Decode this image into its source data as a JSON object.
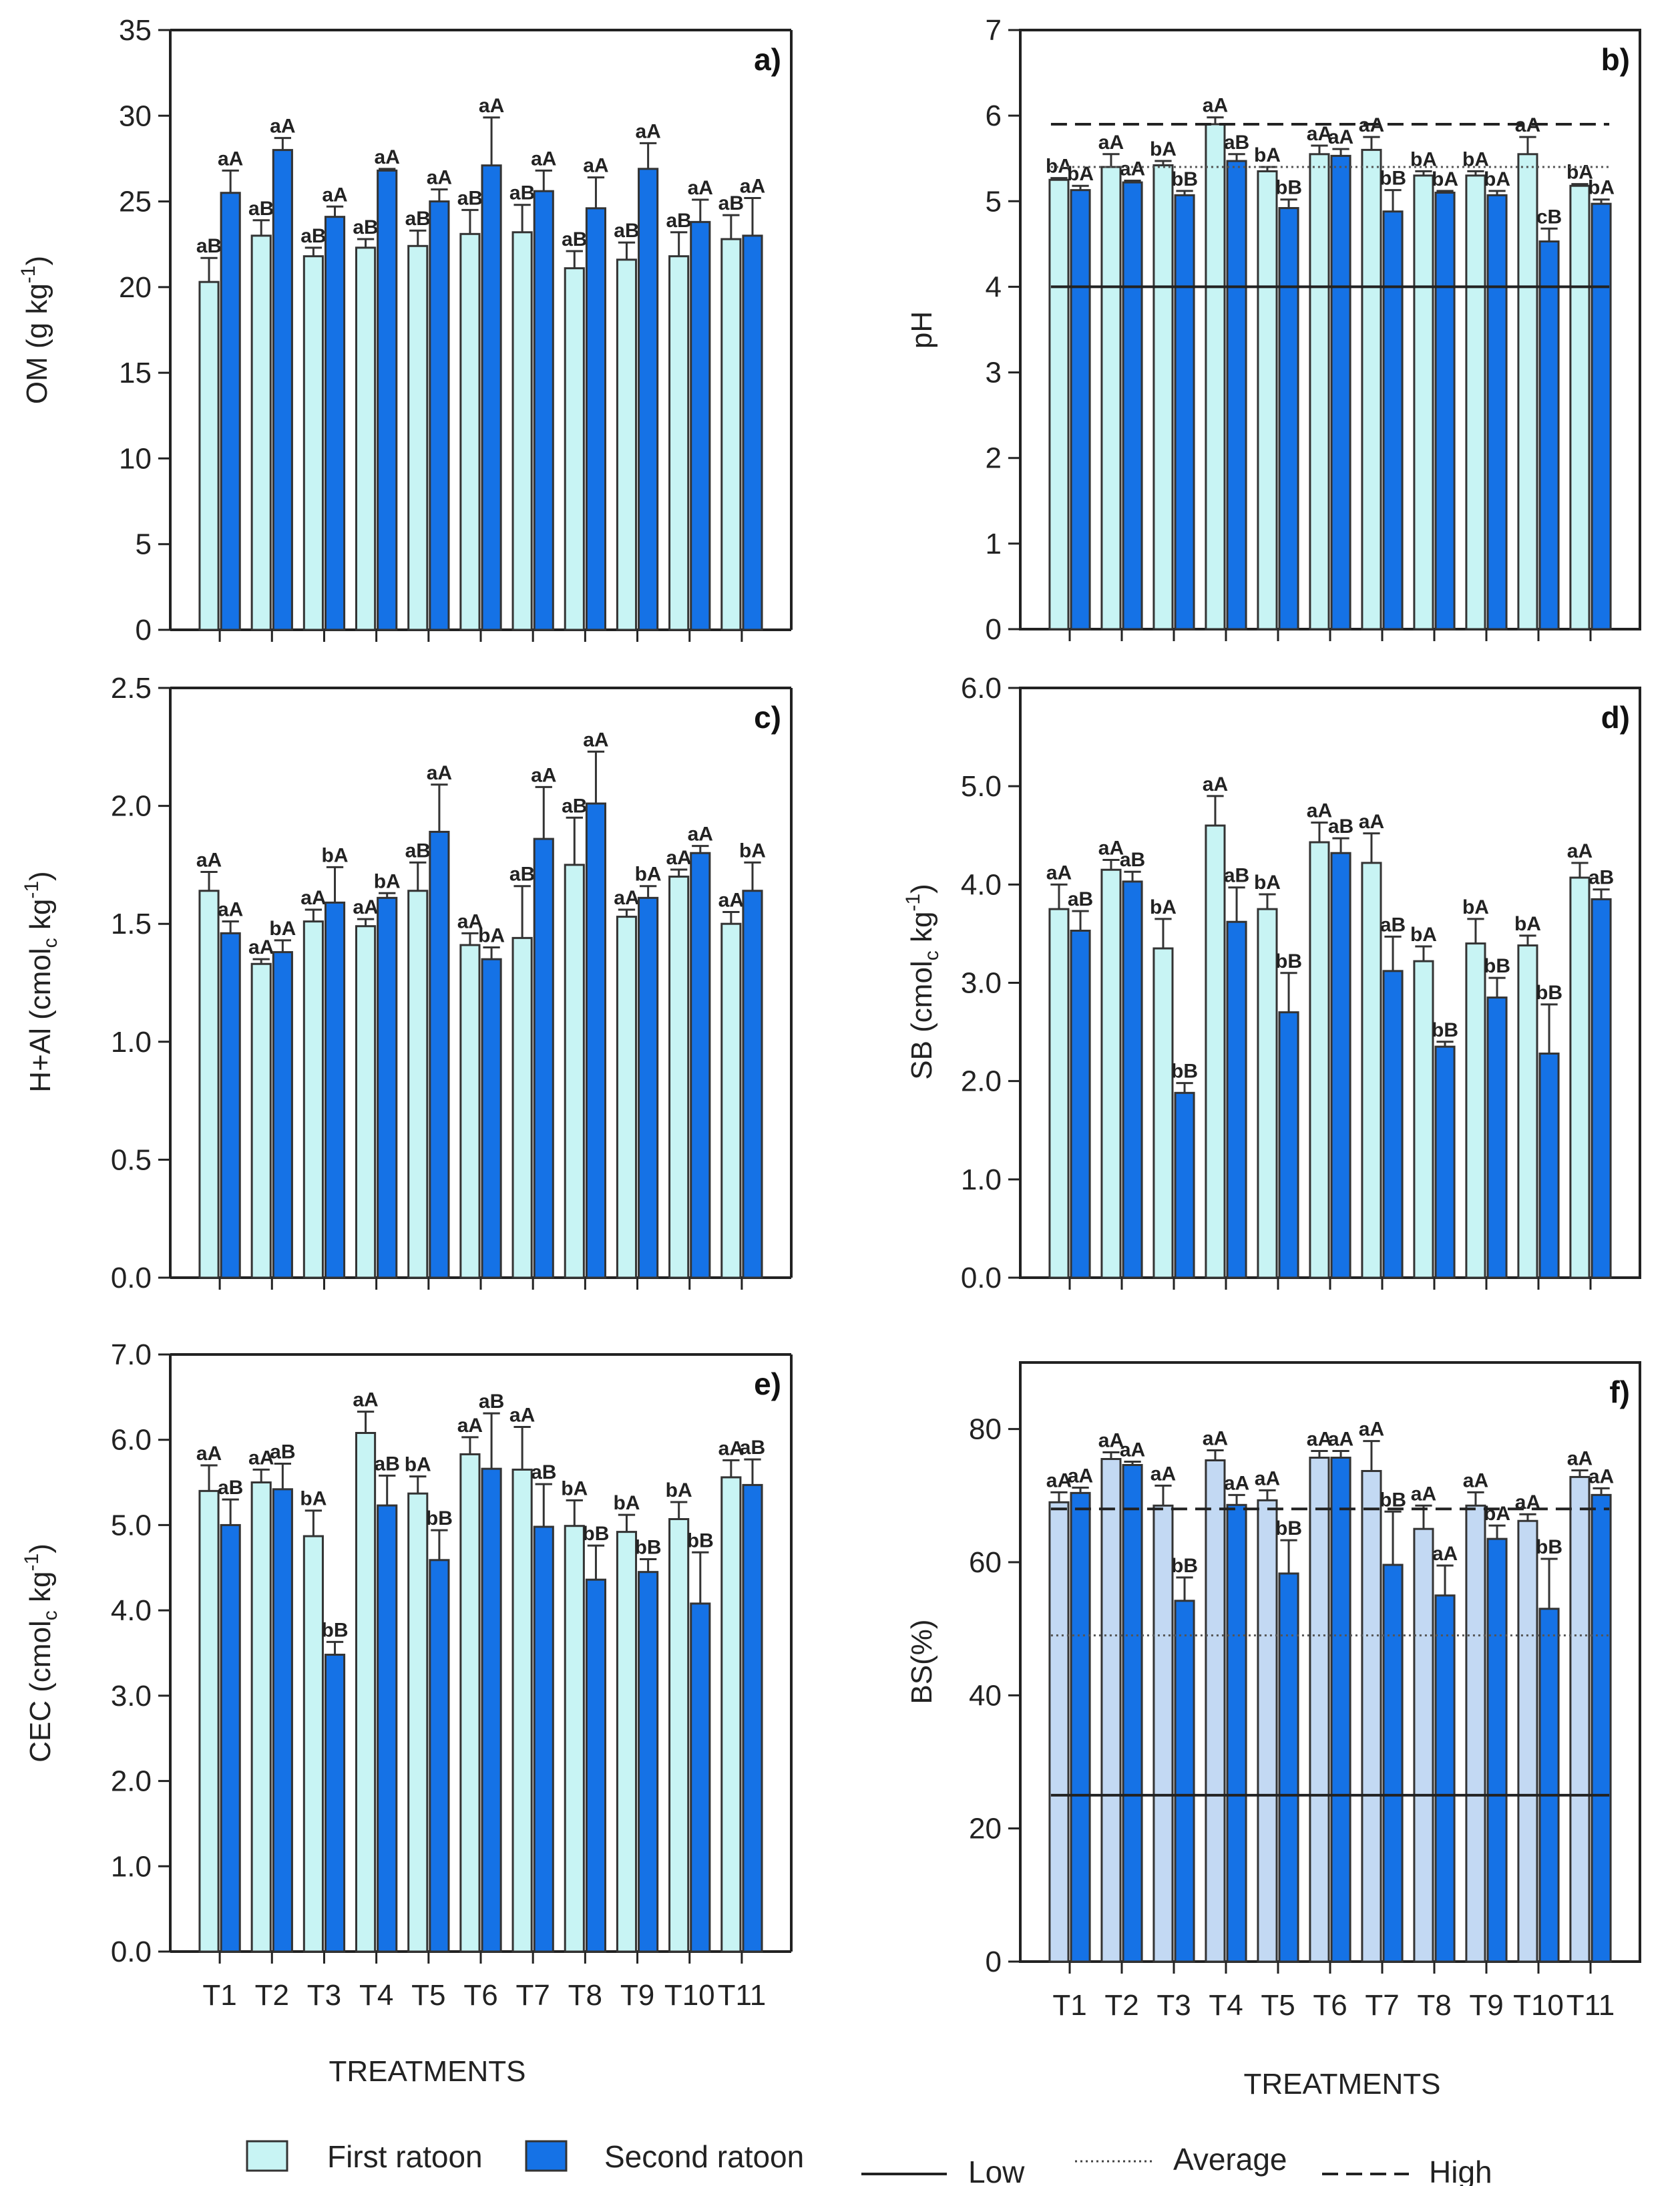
{
  "legend": {
    "first": "First ratoon",
    "second": "Second ratoon",
    "low": "Low",
    "average": "Average",
    "high": "High"
  },
  "colors": {
    "first_ratoon": "#c8f4f4",
    "first_ratoon_f": "#c3d9f3",
    "second_ratoon": "#1572e6",
    "edge": "#333333"
  },
  "categories": [
    "T1",
    "T2",
    "T3",
    "T4",
    "T5",
    "T6",
    "T7",
    "T8",
    "T9",
    "T10",
    "T11"
  ],
  "xlabel": "TREATMENTS",
  "chart_data": [
    {
      "id": "a",
      "letter": "a)",
      "type": "bar",
      "ylabel": "OM (g kg",
      "ylabel_sup": "-1",
      "ylabel_end": ")",
      "ylim": [
        0,
        35
      ],
      "yticks": [
        0,
        5,
        10,
        15,
        20,
        25,
        30,
        35
      ],
      "tick_labels": [
        "0",
        "5",
        "10",
        "15",
        "20",
        "25",
        "30",
        "35"
      ],
      "series": [
        {
          "name": "First ratoon",
          "values": [
            20.3,
            23.0,
            21.8,
            22.3,
            22.4,
            23.1,
            23.2,
            21.1,
            21.6,
            21.8,
            22.8
          ],
          "errors": [
            1.4,
            0.9,
            0.5,
            0.5,
            0.9,
            1.4,
            1.6,
            1.0,
            1.0,
            1.4,
            1.4
          ],
          "labels": [
            "aB",
            "aB",
            "aB",
            "aB",
            "aB",
            "aB",
            "aB",
            "aB",
            "aB",
            "aB",
            "aB"
          ]
        },
        {
          "name": "Second ratoon",
          "values": [
            25.5,
            28.0,
            24.1,
            26.8,
            25.0,
            27.1,
            25.6,
            24.6,
            26.9,
            23.8,
            23.0
          ],
          "errors": [
            1.3,
            0.7,
            0.6,
            0.1,
            0.7,
            2.8,
            1.2,
            1.8,
            1.5,
            1.3,
            2.2
          ],
          "labels": [
            "aA",
            "aA",
            "aA",
            "aA",
            "aA",
            "aA",
            "aA",
            "aA",
            "aA",
            "aA",
            "aA"
          ]
        }
      ],
      "reference_lines": []
    },
    {
      "id": "b",
      "letter": "b)",
      "type": "bar",
      "ylabel": "pH",
      "ylabel_sup": "",
      "ylabel_end": "",
      "ylim": [
        0,
        7
      ],
      "yticks": [
        0,
        1,
        2,
        3,
        4,
        5,
        6,
        7
      ],
      "tick_labels": [
        "0",
        "1",
        "2",
        "3",
        "4",
        "5",
        "6",
        "7"
      ],
      "series": [
        {
          "name": "First ratoon",
          "values": [
            5.25,
            5.4,
            5.42,
            5.9,
            5.35,
            5.55,
            5.6,
            5.3,
            5.3,
            5.55,
            5.18
          ],
          "errors": [
            0.02,
            0.15,
            0.05,
            0.08,
            0.05,
            0.1,
            0.15,
            0.05,
            0.05,
            0.2,
            0.02
          ],
          "labels": [
            "bA",
            "aA",
            "bA",
            "aA",
            "bA",
            "aA",
            "aA",
            "bA",
            "bA",
            "aA",
            "bA"
          ]
        },
        {
          "name": "Second ratoon",
          "values": [
            5.13,
            5.22,
            5.07,
            5.47,
            4.92,
            5.53,
            4.88,
            5.1,
            5.07,
            4.53,
            4.97
          ],
          "errors": [
            0.05,
            0.02,
            0.05,
            0.08,
            0.1,
            0.08,
            0.25,
            0.02,
            0.05,
            0.15,
            0.05
          ],
          "labels": [
            "bA",
            "aA",
            "bB",
            "aB",
            "bB",
            "aA",
            "bB",
            "bA",
            "bA",
            "cB",
            "bA"
          ]
        }
      ],
      "reference_lines": [
        {
          "name": "Low",
          "value": 4.0,
          "style": "solid"
        },
        {
          "name": "Average",
          "value": 5.4,
          "style": "dotted"
        },
        {
          "name": "High",
          "value": 5.9,
          "style": "dashed"
        }
      ]
    },
    {
      "id": "c",
      "letter": "c)",
      "type": "bar",
      "ylabel": "H+Al (cmol",
      "ylabel_sub": "c",
      "ylabel_mid": " kg",
      "ylabel_sup": "-1",
      "ylabel_end": ")",
      "ylim": [
        0,
        2.5
      ],
      "yticks": [
        0,
        0.5,
        1.0,
        1.5,
        2.0,
        2.5
      ],
      "tick_labels": [
        "0.0",
        "0.5",
        "1.0",
        "1.5",
        "2.0",
        "2.5"
      ],
      "series": [
        {
          "name": "First ratoon",
          "values": [
            1.64,
            1.33,
            1.51,
            1.49,
            1.64,
            1.41,
            1.44,
            1.75,
            1.53,
            1.7,
            1.5
          ],
          "errors": [
            0.08,
            0.02,
            0.05,
            0.03,
            0.12,
            0.05,
            0.22,
            0.2,
            0.03,
            0.03,
            0.05
          ],
          "labels": [
            "aA",
            "aA",
            "aA",
            "aA",
            "aB",
            "aA",
            "aB",
            "aB",
            "aA",
            "aA",
            "aA"
          ]
        },
        {
          "name": "Second ratoon",
          "values": [
            1.46,
            1.38,
            1.59,
            1.61,
            1.89,
            1.35,
            1.86,
            2.01,
            1.61,
            1.8,
            1.64
          ],
          "errors": [
            0.05,
            0.05,
            0.15,
            0.02,
            0.2,
            0.05,
            0.22,
            0.22,
            0.05,
            0.03,
            0.12
          ],
          "labels": [
            "aA",
            "bA",
            "bA",
            "bA",
            "aA",
            "bA",
            "aA",
            "aA",
            "bA",
            "aA",
            "bA"
          ]
        }
      ],
      "reference_lines": []
    },
    {
      "id": "d",
      "letter": "d)",
      "type": "bar",
      "ylabel": "SB (cmol",
      "ylabel_sub": "c",
      "ylabel_mid": " kg",
      "ylabel_sup": "-1",
      "ylabel_end": ")",
      "ylim": [
        0,
        6
      ],
      "yticks": [
        0,
        1,
        2,
        3,
        4,
        5,
        6
      ],
      "tick_labels": [
        "0.0",
        "1.0",
        "2.0",
        "3.0",
        "4.0",
        "5.0",
        "6.0"
      ],
      "series": [
        {
          "name": "First ratoon",
          "values": [
            3.75,
            4.15,
            3.35,
            4.6,
            3.75,
            4.43,
            4.22,
            3.22,
            3.4,
            3.38,
            4.07
          ],
          "errors": [
            0.25,
            0.1,
            0.3,
            0.3,
            0.15,
            0.2,
            0.3,
            0.15,
            0.25,
            0.1,
            0.15
          ],
          "labels": [
            "aA",
            "aA",
            "bA",
            "aA",
            "bA",
            "aA",
            "aA",
            "bA",
            "bA",
            "bA",
            "aA"
          ]
        },
        {
          "name": "Second ratoon",
          "values": [
            3.53,
            4.03,
            1.88,
            3.62,
            2.7,
            4.32,
            3.12,
            2.35,
            2.85,
            2.28,
            3.85
          ],
          "errors": [
            0.2,
            0.1,
            0.1,
            0.35,
            0.4,
            0.15,
            0.35,
            0.05,
            0.2,
            0.5,
            0.1
          ],
          "labels": [
            "aB",
            "aB",
            "bB",
            "aB",
            "bB",
            "aB",
            "aB",
            "bB",
            "bB",
            "bB",
            "aB"
          ]
        }
      ],
      "reference_lines": []
    },
    {
      "id": "e",
      "letter": "e)",
      "type": "bar",
      "ylabel": "CEC (cmol",
      "ylabel_sub": "c",
      "ylabel_mid": " kg",
      "ylabel_sup": "-1",
      "ylabel_end": ")",
      "ylim": [
        0,
        7
      ],
      "yticks": [
        0,
        1,
        2,
        3,
        4,
        5,
        6,
        7
      ],
      "tick_labels": [
        "0.0",
        "1.0",
        "2.0",
        "3.0",
        "4.0",
        "5.0",
        "6.0",
        "7.0"
      ],
      "series": [
        {
          "name": "First ratoon",
          "values": [
            5.4,
            5.5,
            4.87,
            6.08,
            5.37,
            5.83,
            5.65,
            4.99,
            4.92,
            5.07,
            5.56
          ],
          "errors": [
            0.3,
            0.15,
            0.3,
            0.25,
            0.2,
            0.2,
            0.5,
            0.3,
            0.2,
            0.2,
            0.2
          ],
          "labels": [
            "aA",
            "aA",
            "bA",
            "aA",
            "bA",
            "aA",
            "aA",
            "bA",
            "bA",
            "bA",
            "aA"
          ]
        },
        {
          "name": "Second ratoon",
          "values": [
            5.0,
            5.42,
            3.48,
            5.23,
            4.59,
            5.66,
            4.98,
            4.36,
            4.45,
            4.08,
            5.47
          ],
          "errors": [
            0.3,
            0.3,
            0.15,
            0.35,
            0.35,
            0.65,
            0.5,
            0.4,
            0.15,
            0.6,
            0.3
          ],
          "labels": [
            "aB",
            "aB",
            "bB",
            "aB",
            "bB",
            "aB",
            "aB",
            "bB",
            "bB",
            "bB",
            "aB"
          ]
        }
      ],
      "reference_lines": []
    },
    {
      "id": "f",
      "letter": "f)",
      "type": "bar",
      "ylabel": "BS(%)",
      "ylabel_sup": "",
      "ylabel_end": "",
      "ylim": [
        0,
        90
      ],
      "yticks": [
        0,
        20,
        40,
        60,
        80
      ],
      "tick_labels": [
        "0",
        "20",
        "40",
        "60",
        "80"
      ],
      "series": [
        {
          "name": "First ratoon",
          "values": [
            69.0,
            75.5,
            68.5,
            75.3,
            69.3,
            75.7,
            73.7,
            65.0,
            68.5,
            66.2,
            72.8
          ],
          "errors": [
            1.5,
            1.0,
            3.0,
            1.5,
            1.5,
            1.0,
            4.5,
            3.5,
            2.0,
            1.0,
            1.0
          ],
          "labels": [
            "aA",
            "aA",
            "aA",
            "aA",
            "aA",
            "aA",
            "aA",
            "aA",
            "aA",
            "aA",
            "aA"
          ]
        },
        {
          "name": "Second ratoon",
          "values": [
            70.4,
            74.6,
            54.2,
            68.6,
            58.3,
            75.7,
            59.6,
            55.0,
            63.5,
            53.0,
            70.1
          ],
          "errors": [
            0.8,
            0.5,
            3.5,
            1.5,
            5.0,
            1.0,
            8.0,
            4.5,
            2.0,
            7.5,
            1.0
          ],
          "labels": [
            "aA",
            "aA",
            "bB",
            "aA",
            "bB",
            "aA",
            "bB",
            "aA",
            "bA",
            "bB",
            "aA"
          ]
        }
      ],
      "reference_lines": [
        {
          "name": "Low",
          "value": 25,
          "style": "solid"
        },
        {
          "name": "Average",
          "value": 49,
          "style": "dotted"
        },
        {
          "name": "High",
          "value": 68,
          "style": "dashed"
        }
      ]
    }
  ]
}
